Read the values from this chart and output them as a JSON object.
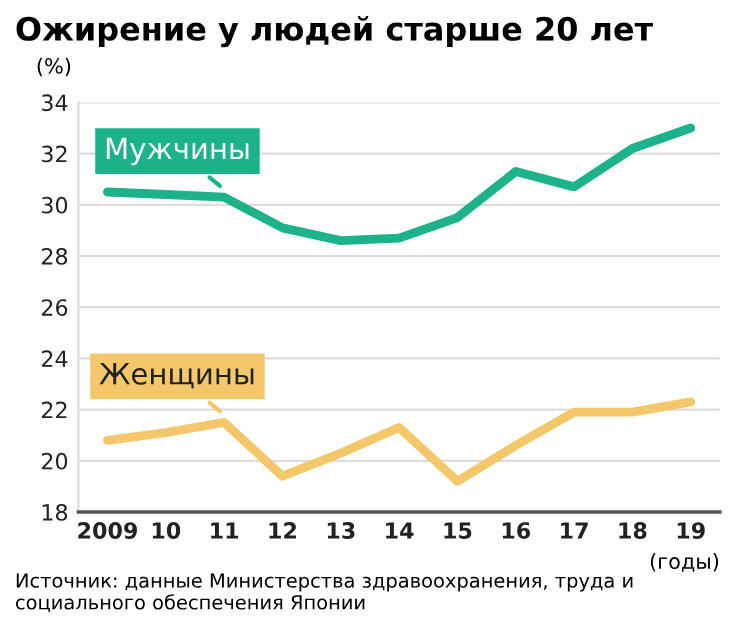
{
  "chart_data": {
    "type": "line",
    "title": "Ожирение у людей старше 20 лет",
    "ylabel": "(%)",
    "xlabel": "(годы)",
    "categories": [
      "2009",
      "10",
      "11",
      "12",
      "13",
      "14",
      "15",
      "16",
      "17",
      "18",
      "19"
    ],
    "series": [
      {
        "name": "Мужчины",
        "color": "#1db38a",
        "values": [
          30.5,
          30.4,
          30.3,
          29.1,
          28.6,
          28.7,
          29.5,
          31.3,
          30.7,
          32.2,
          33.0
        ]
      },
      {
        "name": "Женщины",
        "color": "#f5c76b",
        "values": [
          20.8,
          21.1,
          21.5,
          19.4,
          20.3,
          21.3,
          19.2,
          20.6,
          21.9,
          21.9,
          22.3
        ]
      }
    ],
    "ylim": [
      18,
      34
    ],
    "yticks": [
      18,
      20,
      22,
      24,
      26,
      28,
      30,
      32,
      34
    ],
    "grid": "y",
    "marker": "none",
    "line_style": "solid",
    "annotations": [
      "Источник: данные Министерства здравоохранения, труда и социального обеспечения Японии"
    ]
  }
}
